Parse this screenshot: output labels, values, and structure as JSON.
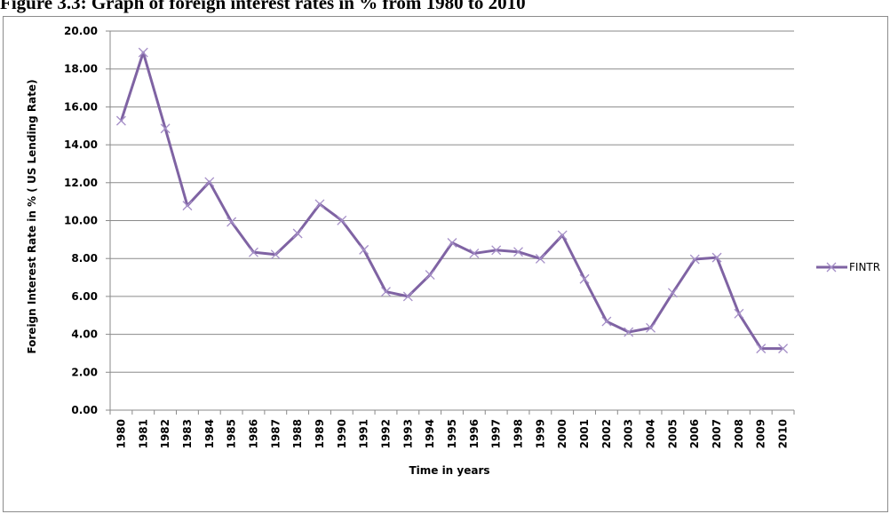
{
  "caption": "Figure 3.3: Graph of foreign interest rates in % from 1980 to 2010",
  "chart_data": {
    "type": "line",
    "title": "",
    "xlabel": "Time in years",
    "ylabel": "Foreign Interest Rate in % ( US Lending Rate)",
    "ylim": [
      0,
      20
    ],
    "yticks": [
      "0.00",
      "2.00",
      "4.00",
      "6.00",
      "8.00",
      "10.00",
      "12.00",
      "14.00",
      "16.00",
      "18.00",
      "20.00"
    ],
    "grid": "horizontal",
    "legend_position": "right",
    "categories": [
      "1980",
      "1981",
      "1982",
      "1983",
      "1984",
      "1985",
      "1986",
      "1987",
      "1988",
      "1989",
      "1990",
      "1991",
      "1992",
      "1993",
      "1994",
      "1995",
      "1996",
      "1997",
      "1998",
      "1999",
      "2000",
      "2001",
      "2002",
      "2003",
      "2004",
      "2005",
      "2006",
      "2007",
      "2008",
      "2009",
      "2010"
    ],
    "series": [
      {
        "name": "FINTR",
        "color": "#7f63a3",
        "values": [
          15.27,
          18.87,
          14.86,
          10.79,
          12.04,
          9.93,
          8.33,
          8.21,
          9.32,
          10.87,
          10.01,
          8.46,
          6.25,
          6.0,
          7.14,
          8.83,
          8.27,
          8.44,
          8.35,
          7.99,
          9.23,
          6.92,
          4.68,
          4.12,
          4.34,
          6.19,
          7.96,
          8.05,
          5.09,
          3.25,
          3.25
        ]
      }
    ]
  }
}
